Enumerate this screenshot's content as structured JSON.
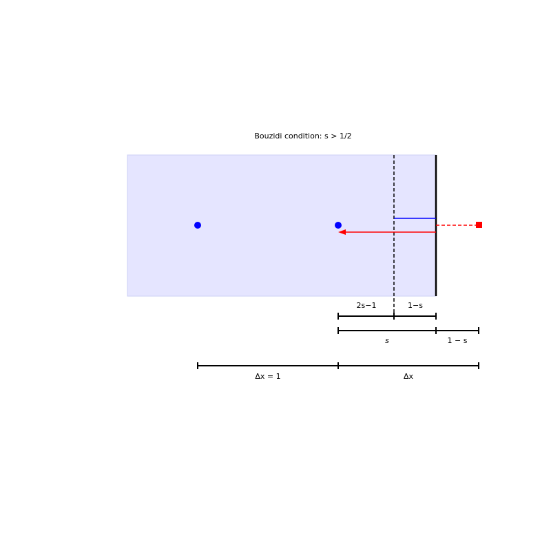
{
  "title": "Bouzidi condition: s > 1/2",
  "labels": {
    "two_s_minus_one": "2s−1",
    "one_minus_s_top": "1−s",
    "s": "s",
    "one_minus_s_bottom": "1 − s",
    "dx_eq_1": "Δx = 1",
    "dx": "Δx"
  }
}
